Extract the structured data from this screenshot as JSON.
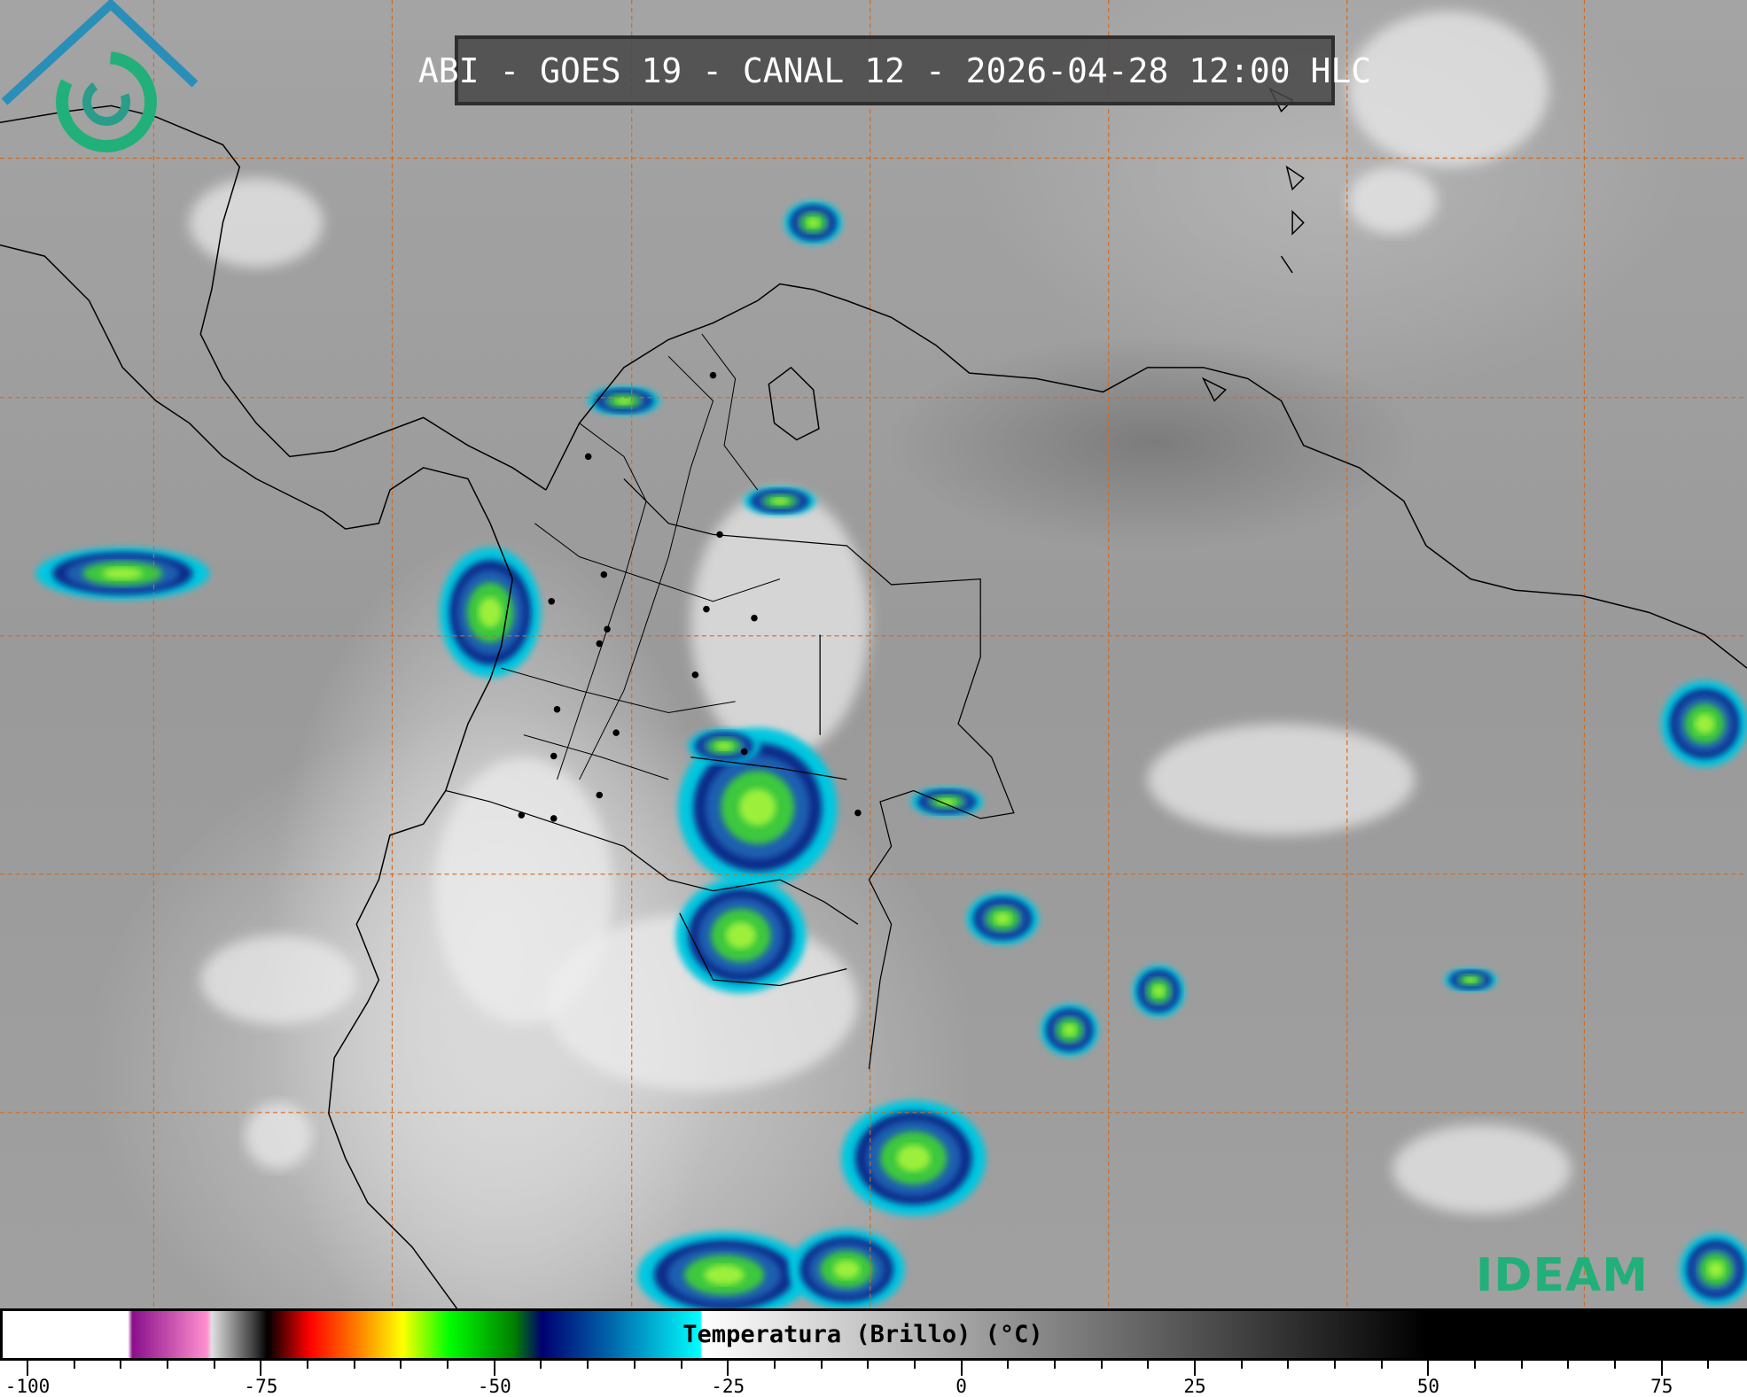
{
  "title": "ABI - GOES 19 - CANAL 12 - 2026-04-28 12:00 HLC",
  "colorbar": {
    "label": "Temperatura (Brillo) (°C)",
    "range": [
      -100,
      84
    ],
    "tick_labels": [
      "-100",
      "-75",
      "-50",
      "-25",
      "0",
      "25",
      "50",
      "75"
    ],
    "stops": [
      {
        "t": -100,
        "color": "#ffffff"
      },
      {
        "t": -89.5,
        "color": "#ffffff"
      },
      {
        "t": -89,
        "color": "#8a0f8a"
      },
      {
        "t": -81,
        "color": "#ff8fd0"
      },
      {
        "t": -80.5,
        "color": "#e0e0e0"
      },
      {
        "t": -76,
        "color": "#404040"
      },
      {
        "t": -74.5,
        "color": "#000000"
      },
      {
        "t": -70,
        "color": "#ff0000"
      },
      {
        "t": -65,
        "color": "#ff7a00"
      },
      {
        "t": -60,
        "color": "#ffff00"
      },
      {
        "t": -55,
        "color": "#00ff00"
      },
      {
        "t": -48,
        "color": "#008000"
      },
      {
        "t": -45,
        "color": "#000070"
      },
      {
        "t": -38,
        "color": "#0060a8"
      },
      {
        "t": -28,
        "color": "#00ffff"
      },
      {
        "t": -27.8,
        "color": "#ffffff"
      },
      {
        "t": 50,
        "color": "#000000"
      },
      {
        "t": 84,
        "color": "#000000"
      }
    ]
  },
  "map": {
    "graticule_color": "#d2691e",
    "coastline_color": "#000000"
  },
  "logo": {
    "text": "IDEAM",
    "color": "#22b07a"
  }
}
